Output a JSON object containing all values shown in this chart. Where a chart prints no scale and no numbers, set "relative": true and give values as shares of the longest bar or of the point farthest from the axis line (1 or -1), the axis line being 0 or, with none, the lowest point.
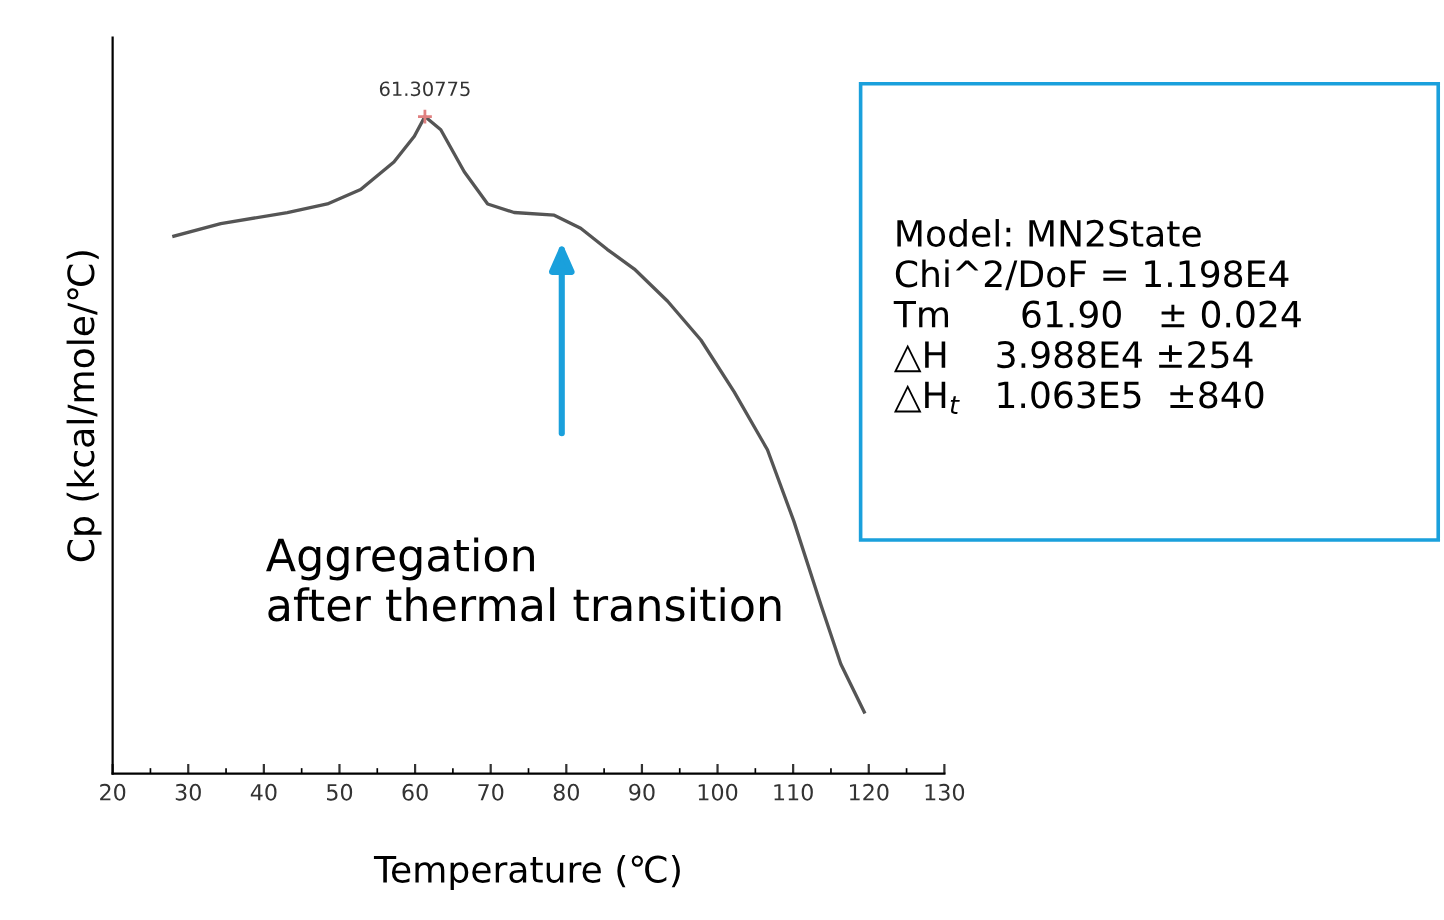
{
  "chart_data": {
    "type": "line",
    "relative": true,
    "xlabel": "Temperature (℃)",
    "ylabel": "Cp (kcal/mole/℃)",
    "xlim": [
      20,
      130
    ],
    "xticks": [
      20,
      30,
      40,
      50,
      60,
      70,
      80,
      90,
      100,
      110,
      120,
      130
    ],
    "grid": false,
    "legend": false,
    "marker": "none",
    "line_style": "solid",
    "series": [
      {
        "color": "#555555",
        "x": [
          28.1,
          34.3,
          43.1,
          48.4,
          52.8,
          57.2,
          59.9,
          61.3,
          63.4,
          66.5,
          69.6,
          73.1,
          78.4,
          81.9,
          85.4,
          89.0,
          93.4,
          97.8,
          102.2,
          106.6,
          110.1,
          113.7,
          116.3,
          119.4
        ],
        "values": [
          0.818,
          0.837,
          0.854,
          0.867,
          0.889,
          0.931,
          0.97,
          1.0,
          0.98,
          0.916,
          0.867,
          0.854,
          0.85,
          0.83,
          0.798,
          0.768,
          0.719,
          0.66,
          0.581,
          0.493,
          0.384,
          0.256,
          0.167,
          0.094
        ]
      }
    ],
    "annotations": [
      {
        "text": "61.30775",
        "x": 61.3,
        "y": 1.0
      },
      "Aggregation\nafter thermal transition",
      "Model: MN2State",
      "Chi^2/DoF = 1.198E4",
      "Tm      61.90   ± 0.024",
      "△H    3.988E4 ±254",
      "△H$_{t}$   1.063E5  ±840"
    ]
  }
}
